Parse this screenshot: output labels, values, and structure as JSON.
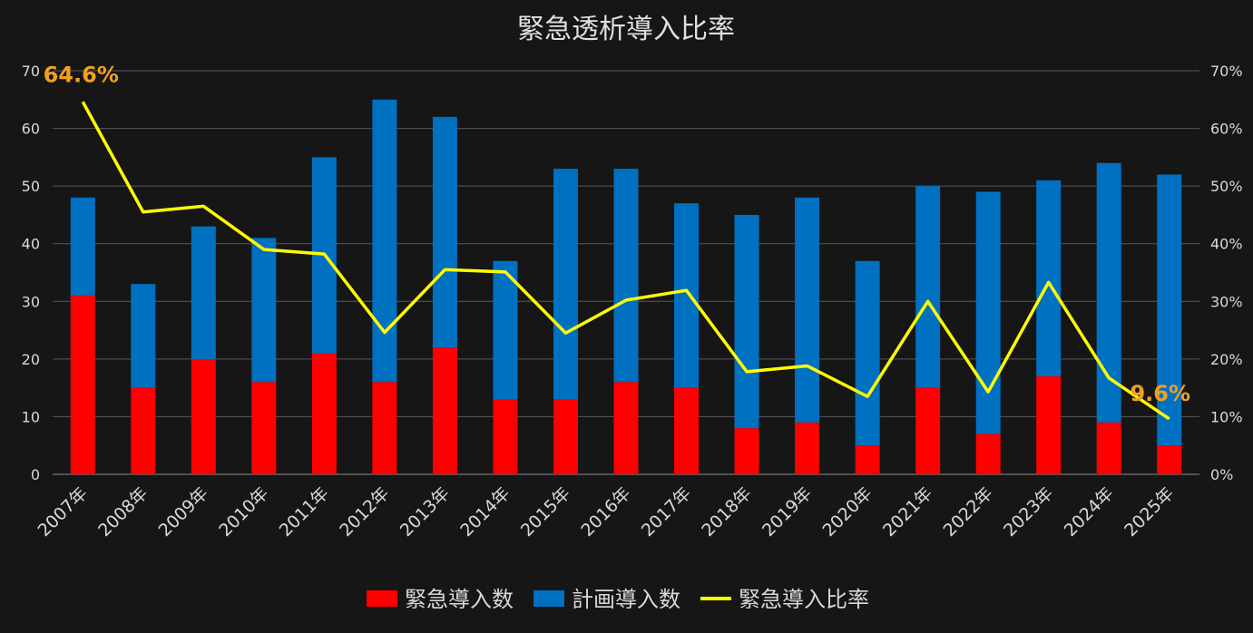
{
  "chart_data": {
    "type": "bar",
    "title": "緊急透析導入比率",
    "categories": [
      "2007年",
      "2008年",
      "2009年",
      "2010年",
      "2011年",
      "2012年",
      "2013年",
      "2014年",
      "2015年",
      "2016年",
      "2017年",
      "2018年",
      "2019年",
      "2020年",
      "2021年",
      "2022年",
      "2023年",
      "2024年",
      "2025年"
    ],
    "series": [
      {
        "name": "緊急導入数",
        "kind": "bar",
        "axis": "left",
        "color": "#ff0000",
        "values": [
          31,
          15,
          20,
          16,
          21,
          16,
          22,
          13,
          13,
          16,
          15,
          8,
          9,
          5,
          15,
          7,
          17,
          9,
          5
        ]
      },
      {
        "name": "計画導入数",
        "kind": "bar",
        "axis": "left",
        "color": "#0070c0",
        "values": [
          17,
          18,
          23,
          25,
          34,
          49,
          40,
          24,
          40,
          37,
          32,
          37,
          39,
          32,
          35,
          42,
          34,
          45,
          47
        ]
      },
      {
        "name": "緊急導入比率",
        "kind": "line",
        "axis": "right",
        "color": "#ffff00",
        "values": [
          64.6,
          45.5,
          46.5,
          39.0,
          38.2,
          24.6,
          35.5,
          35.1,
          24.5,
          30.2,
          31.9,
          17.8,
          18.8,
          13.5,
          30.0,
          14.3,
          33.3,
          16.7,
          9.6
        ]
      }
    ],
    "stacked": true,
    "ylim_left": [
      0,
      70
    ],
    "yticks_left": [
      "0",
      "10",
      "20",
      "30",
      "40",
      "50",
      "60",
      "70"
    ],
    "ylim_right": [
      0,
      70
    ],
    "yticks_right": [
      "0%",
      "10%",
      "20%",
      "30%",
      "40%",
      "50%",
      "60%",
      "70%"
    ],
    "grid": true,
    "legend": "bottom",
    "annotations": [
      {
        "index": 0,
        "text": "64.6%",
        "color": "#f0a020"
      },
      {
        "index": 18,
        "text": "9.6%",
        "color": "#f0a020"
      }
    ],
    "colors": {
      "background": "#161616",
      "grid": "#595959",
      "text": "#d9d9d9",
      "title": "#e0e0e0"
    }
  }
}
